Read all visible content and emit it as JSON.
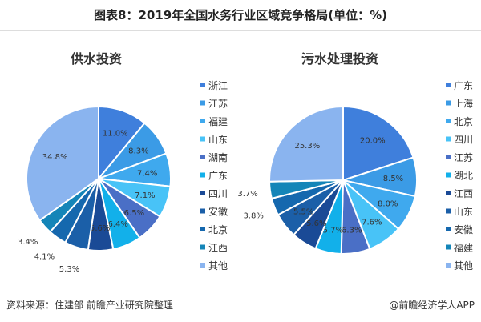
{
  "title": "图表8：2019年全国水务行业区域竞争格局(单位：%)",
  "footer": {
    "source": "资料来源：住建部 前瞻产业研究院整理",
    "brand": "@前瞻经济学人APP"
  },
  "chart_data": [
    {
      "type": "pie",
      "title": "供水投资",
      "unit": "%",
      "legend_position": "right",
      "categories": [
        "浙江",
        "江苏",
        "福建",
        "山东",
        "湖南",
        "广东",
        "四川",
        "安徽",
        "北京",
        "江西",
        "其他"
      ],
      "values": [
        11.0,
        8.3,
        7.4,
        7.1,
        6.5,
        6.4,
        5.6,
        5.3,
        4.1,
        3.4,
        34.8
      ],
      "colors": [
        "#3f7fdc",
        "#3b9be6",
        "#3fa9ee",
        "#48c3f7",
        "#4a6fc6",
        "#12b0ea",
        "#1a4a96",
        "#1b5fa8",
        "#1568ae",
        "#1485b8",
        "#8ab4ef"
      ]
    },
    {
      "type": "pie",
      "title": "污水处理投资",
      "unit": "%",
      "legend_position": "right",
      "categories": [
        "广东",
        "上海",
        "北京",
        "四川",
        "江苏",
        "湖北",
        "江西",
        "山东",
        "安徽",
        "福建",
        "其他"
      ],
      "values": [
        20.0,
        8.5,
        8.0,
        7.6,
        6.3,
        5.7,
        5.6,
        5.5,
        3.8,
        3.7,
        25.3
      ],
      "colors": [
        "#3f7fdc",
        "#3b9be6",
        "#3fa9ee",
        "#48c3f7",
        "#4a6fc6",
        "#12b0ea",
        "#1a4a96",
        "#1b5fa8",
        "#1568ae",
        "#1485b8",
        "#8ab4ef"
      ]
    }
  ]
}
